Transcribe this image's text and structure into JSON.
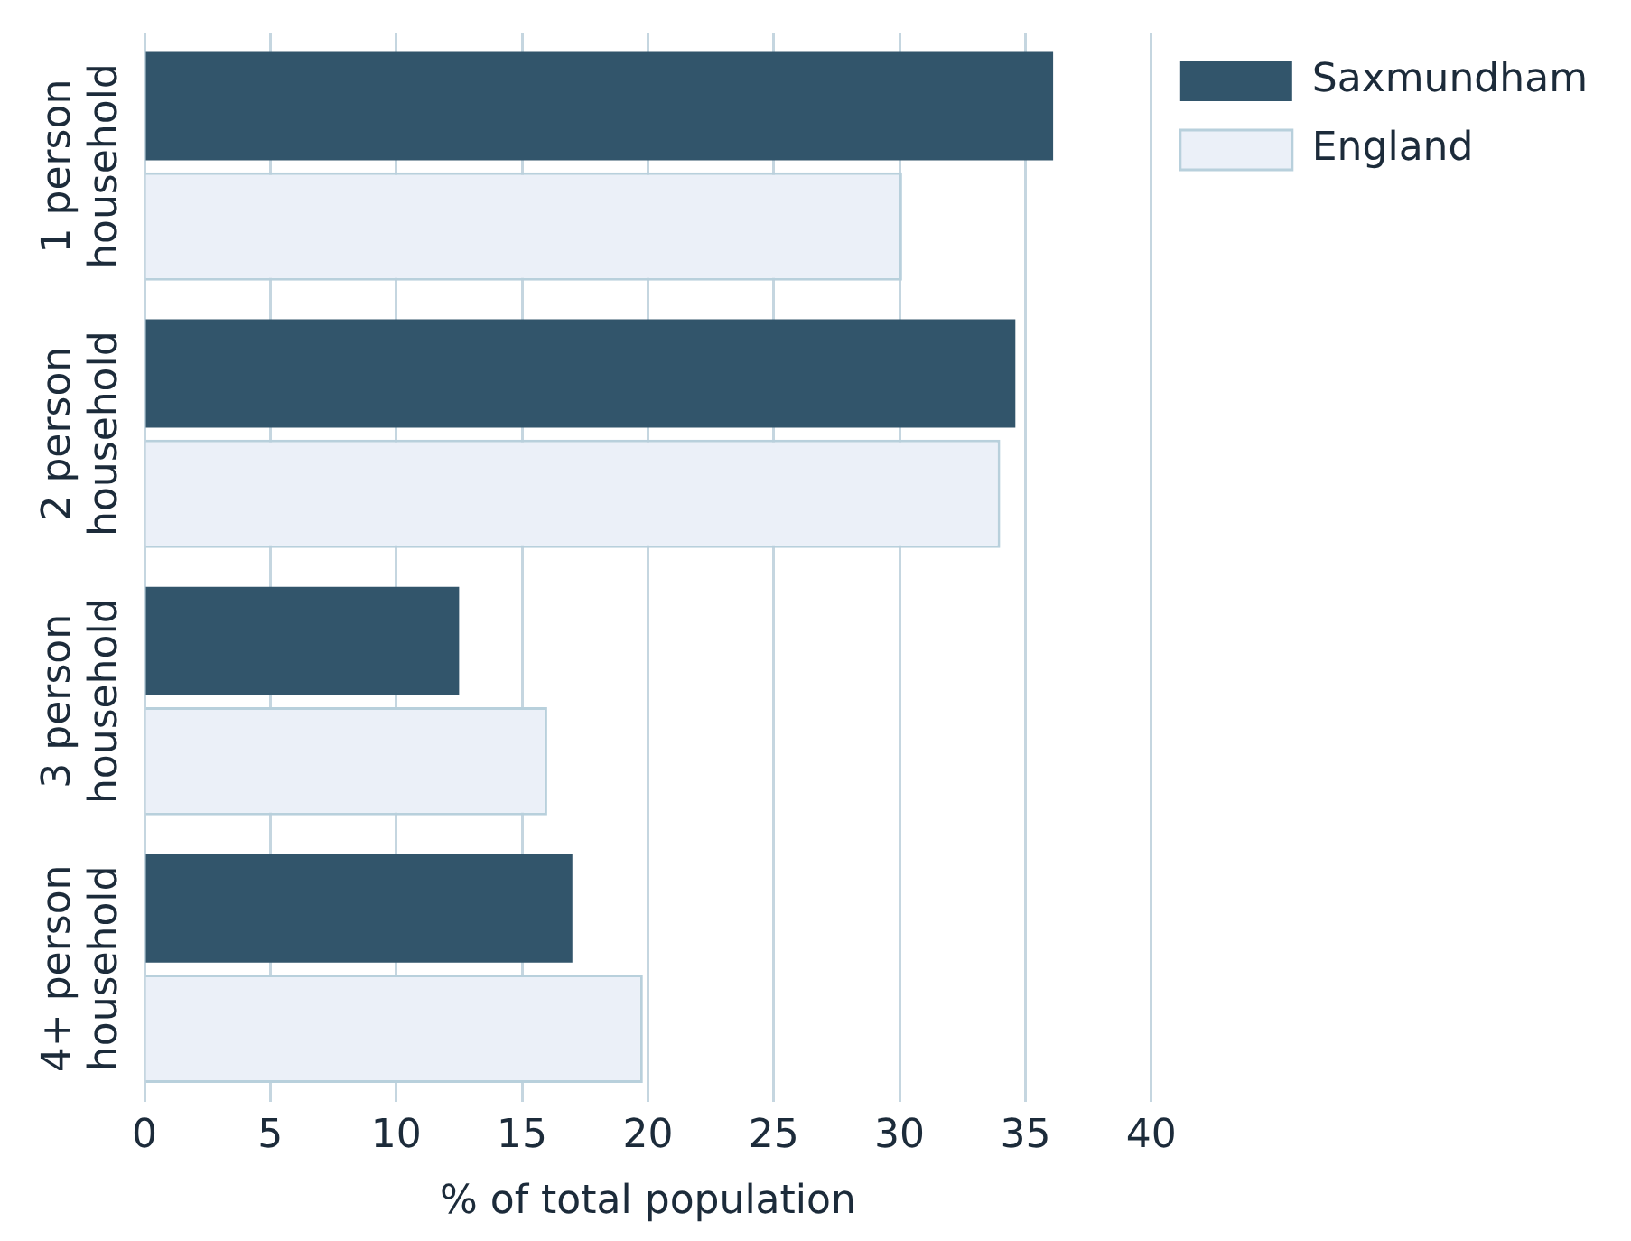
{
  "chart_data": {
    "type": "bar",
    "orientation": "horizontal",
    "xlabel": "% of total population",
    "categories": [
      "1 person household",
      "2 person household",
      "3 person household",
      "4+ person household"
    ],
    "series": [
      {
        "name": "Saxmundham",
        "color": "#32556b",
        "values": [
          36.1,
          34.6,
          12.5,
          17.0
        ]
      },
      {
        "name": "England",
        "color": "#ebf0f8",
        "values": [
          30.1,
          34.0,
          16.0,
          19.8
        ]
      }
    ],
    "xlim": [
      0,
      40
    ],
    "xticks": [
      0,
      5,
      10,
      15,
      20,
      25,
      30,
      35,
      40
    ],
    "grid": "x",
    "legend": "top right"
  }
}
